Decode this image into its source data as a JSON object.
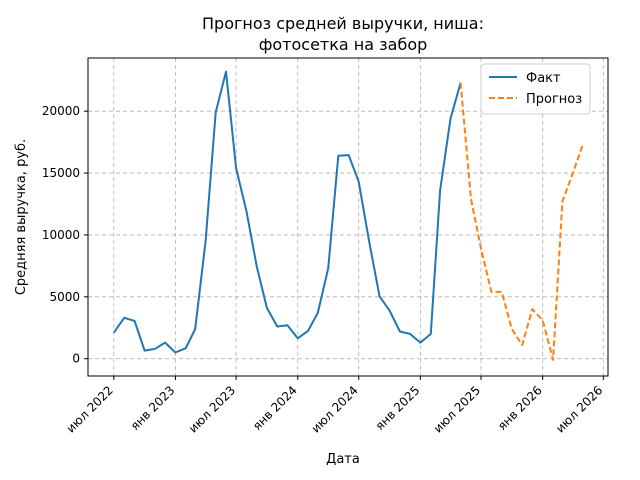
{
  "chart_data": {
    "type": "line",
    "title_lines": [
      "Прогноз средней выручки, ниша:",
      "фотосетка на забор"
    ],
    "xlabel": "Дата",
    "ylabel": "Средняя выручка, руб.",
    "x_ticks": [
      {
        "label": "июл 2022",
        "date": "2022-07-01"
      },
      {
        "label": "янв 2023",
        "date": "2023-01-01"
      },
      {
        "label": "июл 2023",
        "date": "2023-07-01"
      },
      {
        "label": "янв 2024",
        "date": "2024-01-01"
      },
      {
        "label": "июл 2024",
        "date": "2024-07-01"
      },
      {
        "label": "янв 2025",
        "date": "2025-01-01"
      },
      {
        "label": "июл 2025",
        "date": "2025-07-01"
      },
      {
        "label": "янв 2026",
        "date": "2026-01-01"
      },
      {
        "label": "июл 2026",
        "date": "2026-07-01"
      }
    ],
    "y_ticks": [
      0,
      5000,
      10000,
      15000,
      20000
    ],
    "xlim": [
      "2022-04-15",
      "2026-07-15"
    ],
    "ylim": [
      -1400,
      24300
    ],
    "grid": true,
    "grid_style": "dashed",
    "legend_position": "top-right",
    "series": [
      {
        "name": "Факт",
        "color": "#1f77b4",
        "style": "solid",
        "points": [
          {
            "x": "2022-07-01",
            "y": 2100
          },
          {
            "x": "2022-08-01",
            "y": 3300
          },
          {
            "x": "2022-09-01",
            "y": 3050
          },
          {
            "x": "2022-10-01",
            "y": 650
          },
          {
            "x": "2022-11-01",
            "y": 800
          },
          {
            "x": "2022-12-01",
            "y": 1300
          },
          {
            "x": "2023-01-01",
            "y": 500
          },
          {
            "x": "2023-02-01",
            "y": 850
          },
          {
            "x": "2023-03-01",
            "y": 2400
          },
          {
            "x": "2023-04-01",
            "y": 9500
          },
          {
            "x": "2023-05-01",
            "y": 19900
          },
          {
            "x": "2023-06-01",
            "y": 23200
          },
          {
            "x": "2023-07-01",
            "y": 15400
          },
          {
            "x": "2023-08-01",
            "y": 11900
          },
          {
            "x": "2023-09-01",
            "y": 7400
          },
          {
            "x": "2023-10-01",
            "y": 4100
          },
          {
            "x": "2023-11-01",
            "y": 2600
          },
          {
            "x": "2023-12-01",
            "y": 2700
          },
          {
            "x": "2024-01-01",
            "y": 1650
          },
          {
            "x": "2024-02-01",
            "y": 2250
          },
          {
            "x": "2024-03-01",
            "y": 3700
          },
          {
            "x": "2024-04-01",
            "y": 7300
          },
          {
            "x": "2024-05-01",
            "y": 16400
          },
          {
            "x": "2024-06-01",
            "y": 16450
          },
          {
            "x": "2024-07-01",
            "y": 14300
          },
          {
            "x": "2024-08-01",
            "y": 9500
          },
          {
            "x": "2024-09-01",
            "y": 5050
          },
          {
            "x": "2024-10-01",
            "y": 3900
          },
          {
            "x": "2024-11-01",
            "y": 2200
          },
          {
            "x": "2024-12-01",
            "y": 2000
          },
          {
            "x": "2025-01-01",
            "y": 1300
          },
          {
            "x": "2025-02-01",
            "y": 2000
          },
          {
            "x": "2025-03-01",
            "y": 13600
          },
          {
            "x": "2025-04-01",
            "y": 19400
          },
          {
            "x": "2025-05-01",
            "y": 22300
          }
        ]
      },
      {
        "name": "Прогноз",
        "color": "#ff7f0e",
        "style": "dashed",
        "points": [
          {
            "x": "2025-05-01",
            "y": 22300
          },
          {
            "x": "2025-06-01",
            "y": 12900
          },
          {
            "x": "2025-07-01",
            "y": 8900
          },
          {
            "x": "2025-08-01",
            "y": 5400
          },
          {
            "x": "2025-09-01",
            "y": 5400
          },
          {
            "x": "2025-10-01",
            "y": 2400
          },
          {
            "x": "2025-11-01",
            "y": 1100
          },
          {
            "x": "2025-12-01",
            "y": 4000
          },
          {
            "x": "2026-01-01",
            "y": 3100
          },
          {
            "x": "2026-02-01",
            "y": -100
          },
          {
            "x": "2026-03-01",
            "y": 12700
          },
          {
            "x": "2026-04-01",
            "y": 15000
          },
          {
            "x": "2026-05-01",
            "y": 17300
          }
        ]
      }
    ]
  }
}
